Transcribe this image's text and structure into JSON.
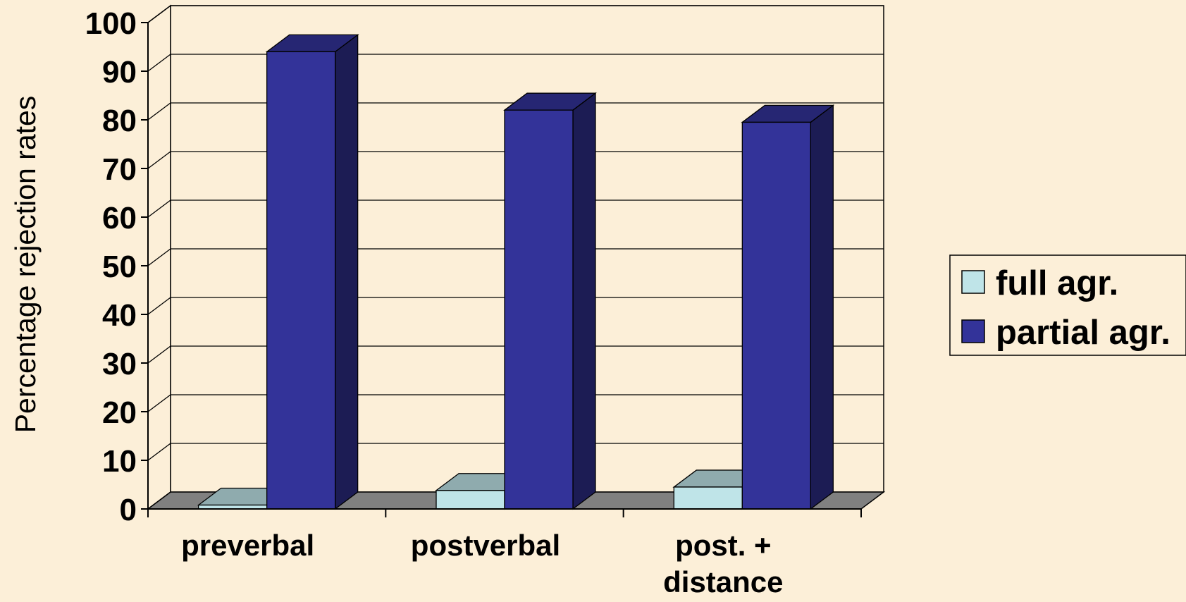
{
  "chart_data": {
    "type": "bar",
    "style": "3d-clustered-column",
    "categories": [
      "preverbal",
      "postverbal",
      "post. + distance"
    ],
    "category_label_lines": [
      [
        "preverbal"
      ],
      [
        "postverbal"
      ],
      [
        "post. +",
        "distance"
      ]
    ],
    "series": [
      {
        "name": "full agr.",
        "values": [
          0.8,
          3.8,
          4.5
        ],
        "color": "#bfe4e8"
      },
      {
        "name": "partial agr.",
        "values": [
          94,
          82,
          79.5
        ],
        "color": "#333399"
      }
    ],
    "title": "",
    "xlabel": "",
    "ylabel": "Percentage rejection rates",
    "ylim": [
      0,
      100
    ],
    "yticks": [
      0,
      10,
      20,
      30,
      40,
      50,
      60,
      70,
      80,
      90,
      100
    ],
    "grid": true,
    "legend_position": "right",
    "floor_color": "#808080",
    "background": "#fcefd8"
  }
}
